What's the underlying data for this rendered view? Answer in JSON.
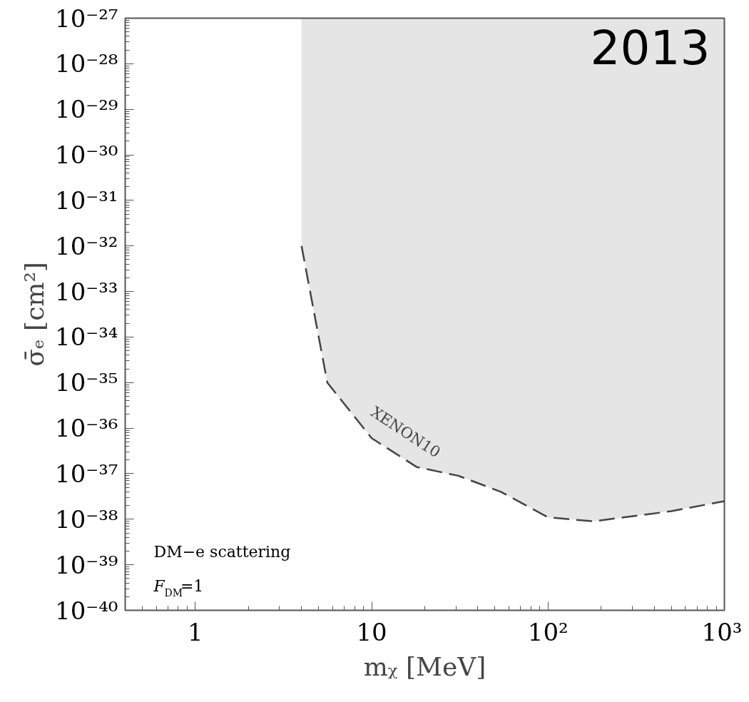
{
  "chart_data": {
    "type": "line",
    "xlabel": "mᵪ [MeV]",
    "ylabel": "σ̄ₑ [cm²]",
    "log": "xy",
    "grid": false,
    "line_style": "dashed",
    "marker": "none",
    "xlim": [
      0.4,
      1000
    ],
    "ylim": [
      1e-40,
      1e-27
    ],
    "xticks": [
      1,
      10,
      {
        "value": 100,
        "label": "10²"
      },
      {
        "value": 1000,
        "label": "10³"
      }
    ],
    "yticks": [
      {
        "value": 1e-40,
        "label": "10⁻⁴⁰"
      },
      {
        "value": 1e-39,
        "label": "10⁻³⁹"
      },
      {
        "value": 1e-38,
        "label": "10⁻³⁸"
      },
      {
        "value": 1e-37,
        "label": "10⁻³⁷"
      },
      {
        "value": 1e-36,
        "label": "10⁻³⁶"
      },
      {
        "value": 1e-35,
        "label": "10⁻³⁵"
      },
      {
        "value": 1e-34,
        "label": "10⁻³⁴"
      },
      {
        "value": 1e-33,
        "label": "10⁻³³"
      },
      {
        "value": 1e-32,
        "label": "10⁻³²"
      },
      {
        "value": 1e-31,
        "label": "10⁻³¹"
      },
      {
        "value": 1e-30,
        "label": "10⁻³⁰"
      },
      {
        "value": 1e-29,
        "label": "10⁻²⁹"
      },
      {
        "value": 1e-28,
        "label": "10⁻²⁸"
      },
      {
        "value": 1e-27,
        "label": "10⁻²⁷"
      }
    ],
    "series": [
      {
        "color": "#444444",
        "x": [
          4,
          5.6,
          10,
          18,
          31,
          54,
          100,
          180,
          500,
          1000
        ],
        "values": [
          1e-32,
          1e-35,
          6e-37,
          1.4e-37,
          9e-38,
          4e-38,
          1.1e-38,
          9e-39,
          1.5e-38,
          2.5e-38
        ]
      }
    ],
    "annotations": [
      "2013",
      "XENON10",
      "DM−e scattering",
      "F$_{DM}$=1"
    ]
  }
}
